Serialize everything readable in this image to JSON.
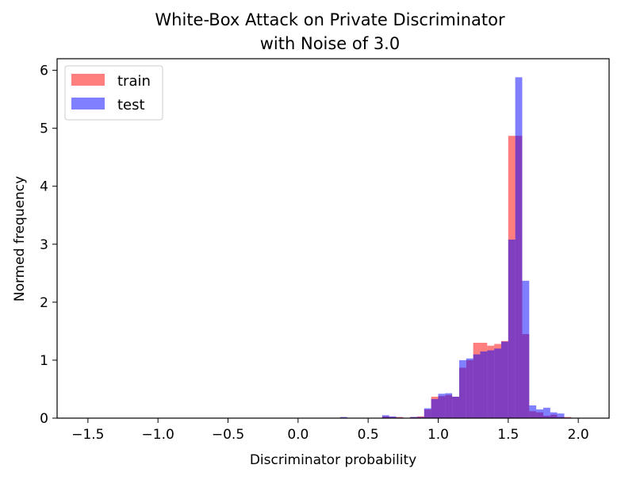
{
  "chart_data": {
    "type": "histogram",
    "title_line1": "White-Box Attack on Private Discriminator",
    "title_line2": "with Noise of 3.0",
    "xlabel": "Discriminator probability",
    "ylabel": "Normed frequency",
    "xlim": [
      -1.72,
      2.22
    ],
    "ylim": [
      0,
      6.2
    ],
    "xticks": [
      -1.5,
      -1.0,
      -0.5,
      0.0,
      0.5,
      1.0,
      1.5,
      2.0
    ],
    "xtick_labels": [
      "−1.5",
      "−1.0",
      "−0.5",
      "0.0",
      "0.5",
      "1.0",
      "1.5",
      "2.0"
    ],
    "yticks": [
      0,
      1,
      2,
      3,
      4,
      5,
      6
    ],
    "ytick_labels": [
      "0",
      "1",
      "2",
      "3",
      "4",
      "5",
      "6"
    ],
    "grid": false,
    "legend_position": "upper-left",
    "bin_width": 0.05,
    "series": [
      {
        "name": "train",
        "color": "#ff0000",
        "alpha": 0.5,
        "bin_starts": [
          0.3,
          0.6,
          0.65,
          0.7,
          0.8,
          0.85,
          0.9,
          0.95,
          1.0,
          1.05,
          1.1,
          1.15,
          1.2,
          1.25,
          1.3,
          1.35,
          1.4,
          1.45,
          1.5,
          1.55,
          1.6,
          1.65,
          1.7,
          1.75,
          1.8,
          1.85,
          1.9
        ],
        "values": [
          0.01,
          0.03,
          0.02,
          0.02,
          0.02,
          0.03,
          0.15,
          0.37,
          0.38,
          0.4,
          0.37,
          0.87,
          1.0,
          1.3,
          1.3,
          1.25,
          1.28,
          1.33,
          4.87,
          4.87,
          1.45,
          0.12,
          0.1,
          0.04,
          0.06,
          0.02,
          0.02
        ]
      },
      {
        "name": "test",
        "color": "#0000ff",
        "alpha": 0.5,
        "bin_starts": [
          0.3,
          0.6,
          0.65,
          0.7,
          0.8,
          0.85,
          0.9,
          0.95,
          1.0,
          1.05,
          1.1,
          1.15,
          1.2,
          1.25,
          1.3,
          1.35,
          1.4,
          1.45,
          1.5,
          1.55,
          1.6,
          1.65,
          1.7,
          1.75,
          1.8,
          1.85,
          1.9
        ],
        "values": [
          0.02,
          0.05,
          0.03,
          0.01,
          0.02,
          0.02,
          0.17,
          0.33,
          0.42,
          0.43,
          0.37,
          1.0,
          1.03,
          1.1,
          1.15,
          1.17,
          1.2,
          1.32,
          3.08,
          5.88,
          2.37,
          0.22,
          0.15,
          0.18,
          0.1,
          0.08,
          0.01
        ]
      }
    ]
  }
}
